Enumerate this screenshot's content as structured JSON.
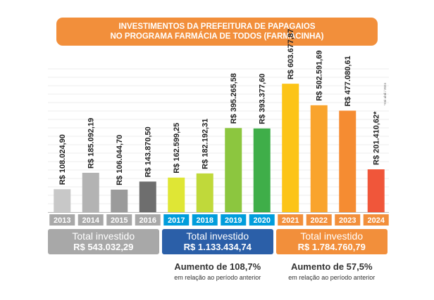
{
  "header": {
    "title_line1": "INVESTIMENTOS DA PREFEITURA DE PAPAGAIOS",
    "title_line2": "NO PROGRAMA FARMÁCIA DE TODOS (FARMACINHA)"
  },
  "chart_data": {
    "type": "bar",
    "title": "INVESTIMENTOS DA PREFEITURA DE PAPAGAIOS NO PROGRAMA FARMÁCIA DE TODOS (FARMACINHA)",
    "categories": [
      "2013",
      "2014",
      "2015",
      "2016",
      "2017",
      "2018",
      "2019",
      "2020",
      "2021",
      "2022",
      "2023",
      "2024"
    ],
    "values": [
      108024.9,
      185092.19,
      106044.7,
      143870.5,
      162599.25,
      182192.31,
      395265.58,
      393377.6,
      603677.87,
      502591.69,
      477080.61,
      201410.62
    ],
    "value_labels": [
      "R$ 108.024,90",
      "R$ 185.092,19",
      "R$ 106.044,70",
      "R$ 143.870,50",
      "R$ 162.599,25",
      "R$ 182.192,31",
      "R$ 395.265,58",
      "R$ 393.377,60",
      "R$ 603.677,87",
      "R$ 502.591,69",
      "R$ 477.080,61",
      "R$ 201.410,62*"
    ],
    "bar_colors": [
      "#c8c8c8",
      "#b3b3b3",
      "#9b9b9b",
      "#6e6e6e",
      "#dfe635",
      "#c0d93a",
      "#8cc63f",
      "#3fae49",
      "#fcc417",
      "#f9a42d",
      "#f58c32",
      "#f0563a"
    ],
    "label_colors": [
      "#a8a8a8",
      "#a8a8a8",
      "#a8a8a8",
      "#a8a8a8",
      "#009ddc",
      "#009ddc",
      "#009ddc",
      "#009ddc",
      "#f28f3b",
      "#f28f3b",
      "#f28f3b",
      "#f28f3b"
    ],
    "note": "*Até abril / 2024",
    "ylim": [
      0,
      700000
    ],
    "grid": true
  },
  "totals": [
    {
      "title": "Total investido",
      "value": "R$ 543.032,29",
      "color": "#a8a8a8"
    },
    {
      "title": "Total investido",
      "value": "R$ 1.133.434,74",
      "color": "#2b5fa8"
    },
    {
      "title": "Total investido",
      "value": "R$ 1.784.760,79",
      "color": "#f28f3b"
    }
  ],
  "increases": [
    {
      "title": "Aumento de 108,7%",
      "subtitle": "em relação ao período anterior"
    },
    {
      "title": "Aumento de 57,5%",
      "subtitle": "em relação ao período anterior"
    }
  ]
}
